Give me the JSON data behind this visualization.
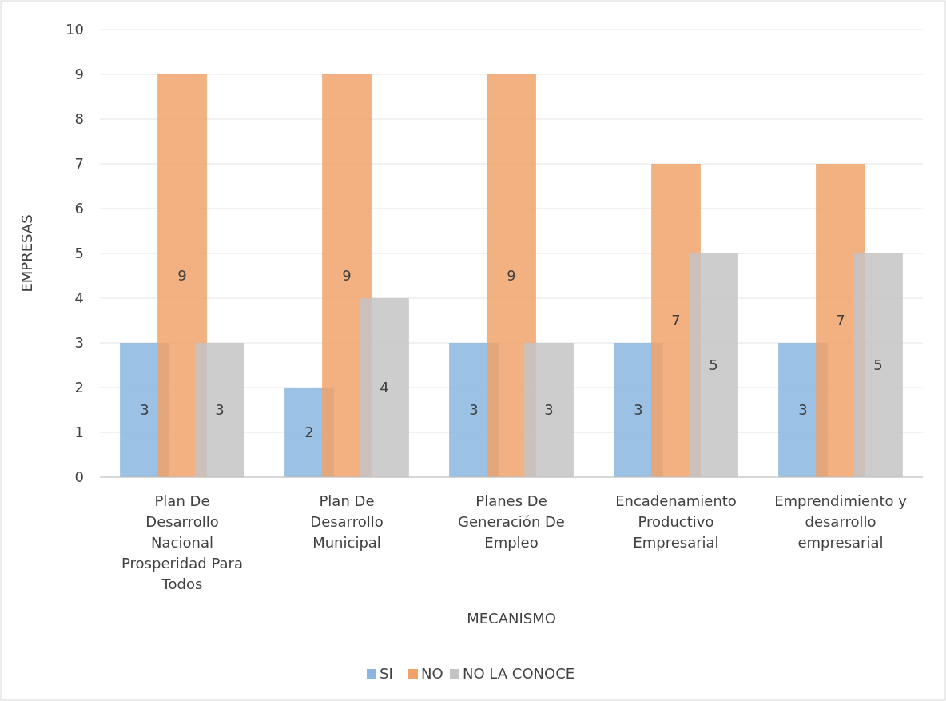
{
  "chart_data": {
    "type": "bar",
    "xlabel": "MECANISMO",
    "ylabel": "EMPRESAS",
    "categories": [
      "Plan De Desarrollo Nacional Prosperidad Para Todos",
      "Plan De Desarrollo Municipal",
      "Planes De Generación De Empleo",
      "Encadenamiento Productivo Empresarial",
      "Emprendimiento y desarrollo empresarial"
    ],
    "series": [
      {
        "name": "SI",
        "color": "#8ab6e0",
        "values": [
          3,
          2,
          3,
          3,
          3
        ]
      },
      {
        "name": "NO",
        "color": "#f1a26a",
        "values": [
          9,
          9,
          9,
          7,
          7
        ]
      },
      {
        "name": "NO LA CONOCE",
        "color": "#c4c4c4",
        "values": [
          3,
          4,
          3,
          5,
          5
        ]
      }
    ],
    "ylim": [
      0,
      10
    ],
    "yticks": [
      0,
      1,
      2,
      3,
      4,
      5,
      6,
      7,
      8,
      9,
      10
    ],
    "grid": "y",
    "legend": "bottom",
    "data_labels": true
  }
}
